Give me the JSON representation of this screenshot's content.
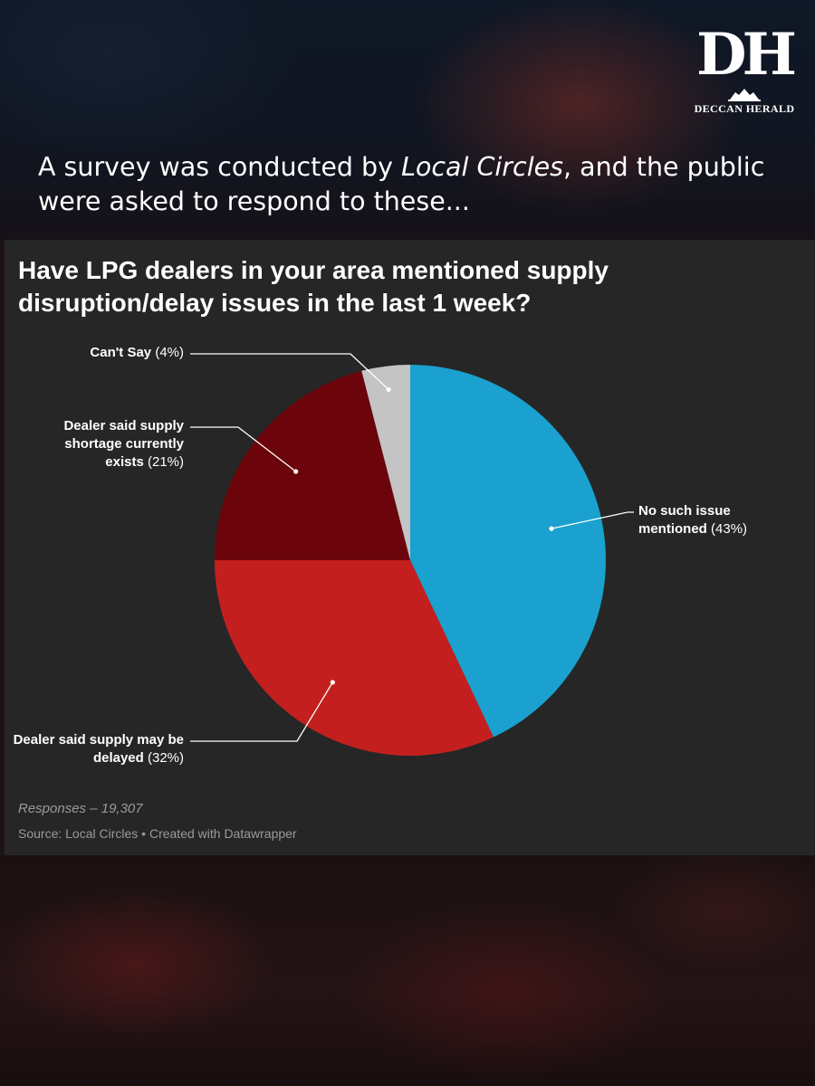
{
  "brand": {
    "logo_mark": "DH",
    "logo_text": "DECCAN HERALD"
  },
  "intro": {
    "part1": "A survey was conducted by ",
    "italic": "Local Circles",
    "part2": ", and the public were asked to respond to these..."
  },
  "footnote": "Responses – 19,307",
  "source": "Source: Local Circles • Created with Datawrapper",
  "chart_data": {
    "type": "pie",
    "title": "Have LPG dealers in your area mentioned supply disruption/delay issues in the last 1 week?",
    "slices": [
      {
        "label": "No such issue mentioned",
        "value": 43,
        "display": "(43%)",
        "color": "#1aa1cf"
      },
      {
        "label": "Dealer said supply may be delayed",
        "value": 32,
        "display": "(32%)",
        "color": "#c41f1f"
      },
      {
        "label": "Dealer said supply shortage currently exists",
        "value": 21,
        "display": "(21%)",
        "color": "#6b050b"
      },
      {
        "label": "Can't Say",
        "value": 4,
        "display": "(4%)",
        "color": "#c4c4c4"
      }
    ],
    "start_angle_deg": 0,
    "direction": "clockwise",
    "label_style": "callout lines"
  }
}
